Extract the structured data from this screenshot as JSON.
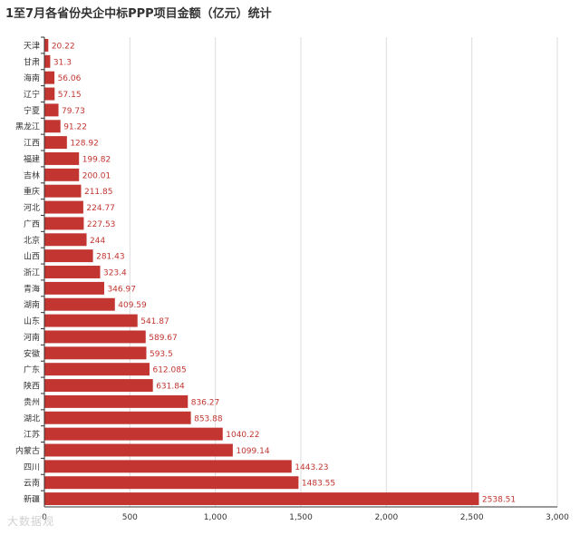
{
  "chart_data": {
    "type": "bar",
    "orientation": "horizontal",
    "title": "1至7月各省份央企中标PPP项目金额（亿元）统计",
    "xlabel": "",
    "ylabel": "",
    "xlim": [
      0,
      3000
    ],
    "xticks": [
      0,
      500,
      1000,
      1500,
      2000,
      2500,
      3000
    ],
    "xtick_labels": [
      "0",
      "500",
      "1,000",
      "1,500",
      "2,000",
      "2,500",
      "3,000"
    ],
    "grid": true,
    "bar_color": "#c23531",
    "label_color": "#c23531",
    "categories": [
      "天津",
      "甘肃",
      "海南",
      "辽宁",
      "宁夏",
      "黑龙江",
      "江西",
      "福建",
      "吉林",
      "重庆",
      "河北",
      "广西",
      "北京",
      "山西",
      "浙江",
      "青海",
      "湖南",
      "山东",
      "河南",
      "安徽",
      "广东",
      "陕西",
      "贵州",
      "湖北",
      "江苏",
      "内蒙古",
      "四川",
      "云南",
      "新疆"
    ],
    "values": [
      20.22,
      31.3,
      56.06,
      57.15,
      79.73,
      91.22,
      128.92,
      199.82,
      200.01,
      211.85,
      224.77,
      227.53,
      244,
      281.43,
      323.4,
      346.97,
      409.59,
      541.87,
      589.67,
      593.5,
      612.085,
      631.84,
      836.27,
      853.88,
      1040.22,
      1099.14,
      1443.23,
      1483.55,
      2538.51
    ],
    "value_labels": [
      "20.22",
      "31.3",
      "56.06",
      "57.15",
      "79.73",
      "91.22",
      "128.92",
      "199.82",
      "200.01",
      "211.85",
      "224.77",
      "227.53",
      "244",
      "281.43",
      "323.4",
      "346.97",
      "409.59",
      "541.87",
      "589.67",
      "593.5",
      "612.085",
      "631.84",
      "836.27",
      "853.88",
      "1040.22",
      "1099.14",
      "1443.23",
      "1483.55",
      "2538.51"
    ]
  },
  "watermark": "大数据观"
}
